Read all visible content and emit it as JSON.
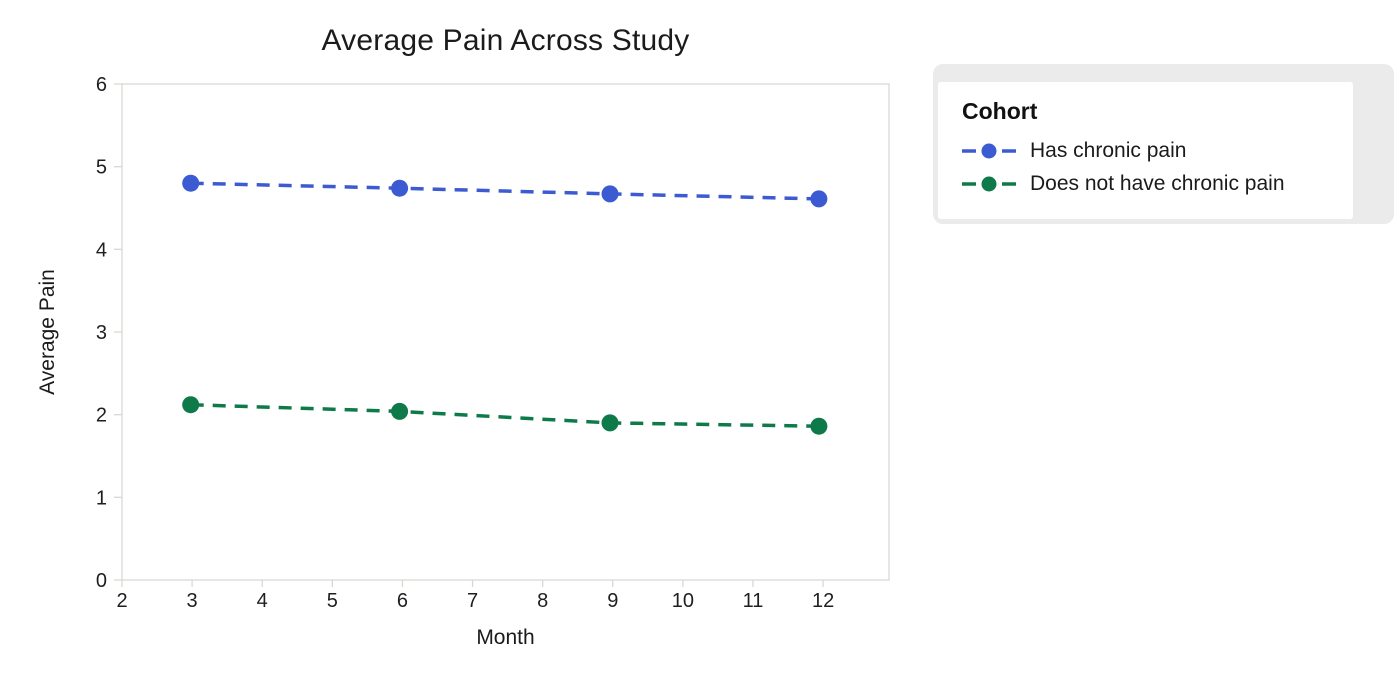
{
  "chart_data": {
    "type": "line",
    "title": "Average Pain Across Study",
    "xlabel": "Month",
    "ylabel": "Average Pain",
    "xlim": [
      2,
      12.94
    ],
    "ylim": [
      0,
      6
    ],
    "xticks": [
      2,
      3,
      4,
      5,
      6,
      7,
      8,
      9,
      10,
      11,
      12
    ],
    "yticks": [
      0,
      1,
      2,
      3,
      4,
      5,
      6
    ],
    "grid": false,
    "line_style": "dashed",
    "marker": "circle",
    "x": [
      2.98,
      5.96,
      8.96,
      11.94
    ],
    "series": [
      {
        "name": "Has chronic pain",
        "color": "#3c5bd2",
        "values": [
          4.8,
          4.74,
          4.67,
          4.61
        ]
      },
      {
        "name": "Does not have chronic pain",
        "color": "#0f7a49",
        "values": [
          2.12,
          2.04,
          1.9,
          1.86
        ]
      }
    ],
    "legend": {
      "title": "Cohort",
      "position": "right"
    }
  },
  "style": {
    "background": "#ffffff",
    "axis_color": "#d8d8d3",
    "text_color": "#1f1f1f",
    "shadow_color": "#ebebeb",
    "tick_font_size": 20
  }
}
